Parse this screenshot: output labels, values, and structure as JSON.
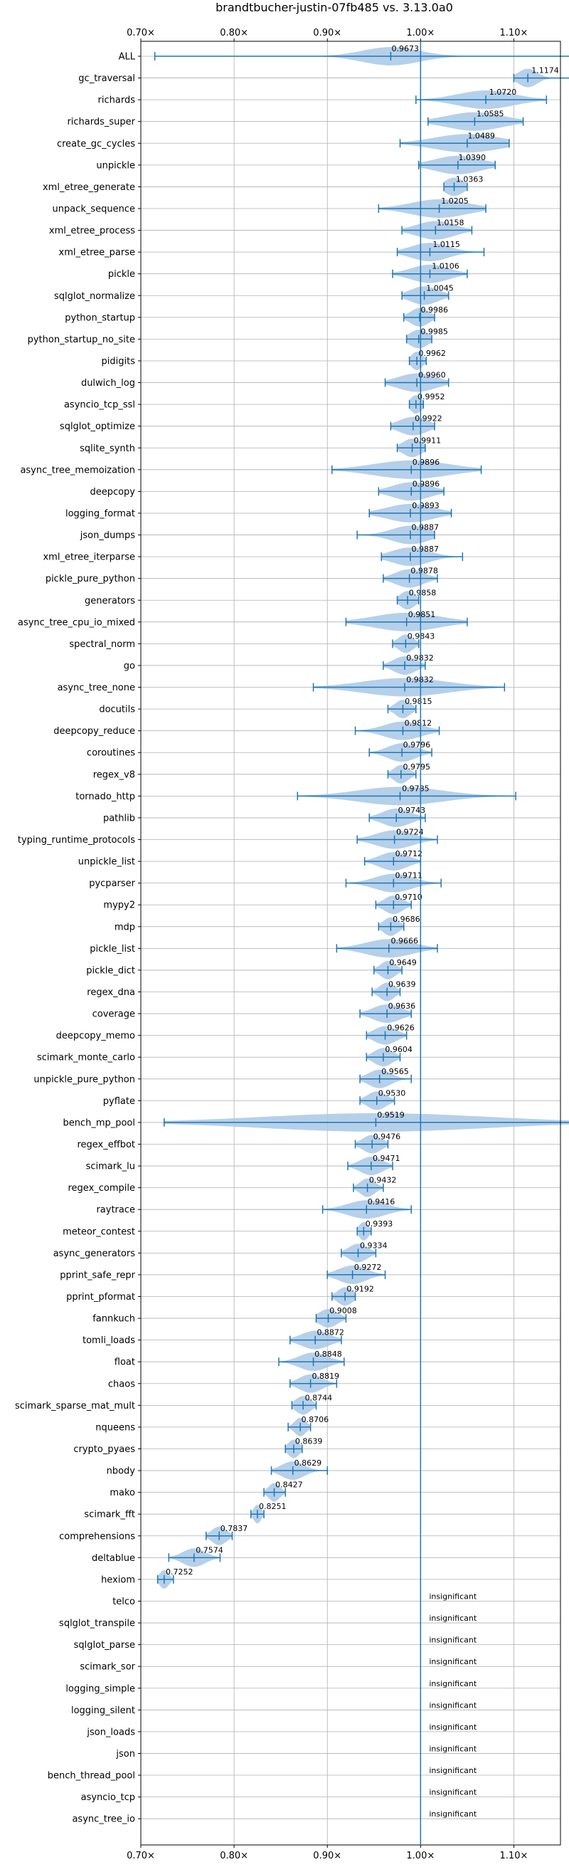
{
  "chart_data": {
    "type": "violin",
    "title": "brandtbucher-justin-07fb485 vs. 3.13.0a0",
    "xlim": [
      0.7,
      1.15
    ],
    "x_ticks": [
      "0.70×",
      "0.80×",
      "0.90×",
      "1.00×",
      "1.10×"
    ],
    "x_tick_values": [
      0.7,
      0.8,
      0.9,
      1.0,
      1.1
    ],
    "reference_line": 1.0,
    "grid": true,
    "colors": {
      "violin": "#a9c8e6",
      "whisker": "#1f77b4",
      "grid": "#b0b0b0"
    },
    "rows": [
      {
        "label": "ALL",
        "mean": 0.9673,
        "value_label": "0.9673",
        "min": 0.715,
        "max": 1.17,
        "median": 0.968,
        "spread": 0.03
      },
      {
        "label": "gc_traversal",
        "mean": 1.1174,
        "value_label": "1.1174",
        "min": 1.1,
        "max": 1.17,
        "median": 1.115,
        "spread": 0.01
      },
      {
        "label": "richards",
        "mean": 1.072,
        "value_label": "1.0720",
        "min": 0.995,
        "max": 1.135,
        "median": 1.07,
        "spread": 0.03
      },
      {
        "label": "richards_super",
        "mean": 1.0585,
        "value_label": "1.0585",
        "min": 1.008,
        "max": 1.11,
        "median": 1.058,
        "spread": 0.03
      },
      {
        "label": "create_gc_cycles",
        "mean": 1.0489,
        "value_label": "1.0489",
        "min": 0.978,
        "max": 1.095,
        "median": 1.05,
        "spread": 0.035
      },
      {
        "label": "unpickle",
        "mean": 1.039,
        "value_label": "1.0390",
        "min": 0.998,
        "max": 1.08,
        "median": 1.04,
        "spread": 0.025
      },
      {
        "label": "xml_etree_generate",
        "mean": 1.0363,
        "value_label": "1.0363",
        "min": 1.025,
        "max": 1.05,
        "median": 1.036,
        "spread": 0.01
      },
      {
        "label": "unpack_sequence",
        "mean": 1.0205,
        "value_label": "1.0205",
        "min": 0.955,
        "max": 1.07,
        "median": 1.02,
        "spread": 0.03
      },
      {
        "label": "xml_etree_process",
        "mean": 1.0158,
        "value_label": "1.0158",
        "min": 0.98,
        "max": 1.055,
        "median": 1.016,
        "spread": 0.02
      },
      {
        "label": "xml_etree_parse",
        "mean": 1.0115,
        "value_label": "1.0115",
        "min": 0.975,
        "max": 1.068,
        "median": 1.01,
        "spread": 0.02
      },
      {
        "label": "pickle",
        "mean": 1.0106,
        "value_label": "1.0106",
        "min": 0.97,
        "max": 1.05,
        "median": 1.01,
        "spread": 0.02
      },
      {
        "label": "sqlglot_normalize",
        "mean": 1.0045,
        "value_label": "1.0045",
        "min": 0.98,
        "max": 1.03,
        "median": 1.004,
        "spread": 0.015
      },
      {
        "label": "python_startup",
        "mean": 0.9986,
        "value_label": "0.9986",
        "min": 0.982,
        "max": 1.015,
        "median": 0.999,
        "spread": 0.01
      },
      {
        "label": "python_startup_no_site",
        "mean": 0.9985,
        "value_label": "0.9985",
        "min": 0.985,
        "max": 1.012,
        "median": 0.998,
        "spread": 0.01
      },
      {
        "label": "pidigits",
        "mean": 0.9962,
        "value_label": "0.9962",
        "min": 0.988,
        "max": 1.006,
        "median": 0.996,
        "spread": 0.006
      },
      {
        "label": "dulwich_log",
        "mean": 0.996,
        "value_label": "0.9960",
        "min": 0.962,
        "max": 1.03,
        "median": 0.996,
        "spread": 0.02
      },
      {
        "label": "asyncio_tcp_ssl",
        "mean": 0.9952,
        "value_label": "0.9952",
        "min": 0.988,
        "max": 1.003,
        "median": 0.995,
        "spread": 0.006
      },
      {
        "label": "sqlglot_optimize",
        "mean": 0.9922,
        "value_label": "0.9922",
        "min": 0.968,
        "max": 1.015,
        "median": 0.992,
        "spread": 0.015
      },
      {
        "label": "sqlite_synth",
        "mean": 0.9911,
        "value_label": "0.9911",
        "min": 0.975,
        "max": 1.005,
        "median": 0.991,
        "spread": 0.01
      },
      {
        "label": "async_tree_memoization",
        "mean": 0.9896,
        "value_label": "0.9896",
        "min": 0.905,
        "max": 1.065,
        "median": 0.99,
        "spread": 0.04
      },
      {
        "label": "deepcopy",
        "mean": 0.9896,
        "value_label": "0.9896",
        "min": 0.955,
        "max": 1.025,
        "median": 0.99,
        "spread": 0.02
      },
      {
        "label": "logging_format",
        "mean": 0.9893,
        "value_label": "0.9893",
        "min": 0.945,
        "max": 1.033,
        "median": 0.989,
        "spread": 0.025
      },
      {
        "label": "json_dumps",
        "mean": 0.9887,
        "value_label": "0.9887",
        "min": 0.932,
        "max": 1.015,
        "median": 0.989,
        "spread": 0.02
      },
      {
        "label": "xml_etree_iterparse",
        "mean": 0.9887,
        "value_label": "0.9887",
        "min": 0.958,
        "max": 1.045,
        "median": 0.989,
        "spread": 0.02
      },
      {
        "label": "pickle_pure_python",
        "mean": 0.9878,
        "value_label": "0.9878",
        "min": 0.96,
        "max": 1.018,
        "median": 0.988,
        "spread": 0.015
      },
      {
        "label": "generators",
        "mean": 0.9858,
        "value_label": "0.9858",
        "min": 0.975,
        "max": 0.998,
        "median": 0.986,
        "spread": 0.008
      },
      {
        "label": "async_tree_cpu_io_mixed",
        "mean": 0.9851,
        "value_label": "0.9851",
        "min": 0.92,
        "max": 1.05,
        "median": 0.985,
        "spread": 0.035
      },
      {
        "label": "spectral_norm",
        "mean": 0.9843,
        "value_label": "0.9843",
        "min": 0.97,
        "max": 0.998,
        "median": 0.984,
        "spread": 0.008
      },
      {
        "label": "go",
        "mean": 0.9832,
        "value_label": "0.9832",
        "min": 0.96,
        "max": 1.005,
        "median": 0.983,
        "spread": 0.012
      },
      {
        "label": "async_tree_none",
        "mean": 0.9832,
        "value_label": "0.9832",
        "min": 0.885,
        "max": 1.09,
        "median": 0.983,
        "spread": 0.045
      },
      {
        "label": "docutils",
        "mean": 0.9815,
        "value_label": "0.9815",
        "min": 0.965,
        "max": 0.995,
        "median": 0.981,
        "spread": 0.008
      },
      {
        "label": "deepcopy_reduce",
        "mean": 0.9812,
        "value_label": "0.9812",
        "min": 0.93,
        "max": 1.02,
        "median": 0.981,
        "spread": 0.02
      },
      {
        "label": "coroutines",
        "mean": 0.9796,
        "value_label": "0.9796",
        "min": 0.945,
        "max": 1.012,
        "median": 0.98,
        "spread": 0.015
      },
      {
        "label": "regex_v8",
        "mean": 0.9795,
        "value_label": "0.9795",
        "min": 0.965,
        "max": 0.995,
        "median": 0.979,
        "spread": 0.008
      },
      {
        "label": "tornado_http",
        "mean": 0.9785,
        "value_label": "0.9785",
        "min": 0.868,
        "max": 1.102,
        "median": 0.978,
        "spread": 0.045
      },
      {
        "label": "pathlib",
        "mean": 0.9743,
        "value_label": "0.9743",
        "min": 0.945,
        "max": 1.005,
        "median": 0.974,
        "spread": 0.015
      },
      {
        "label": "typing_runtime_protocols",
        "mean": 0.9724,
        "value_label": "0.9724",
        "min": 0.932,
        "max": 1.018,
        "median": 0.972,
        "spread": 0.02
      },
      {
        "label": "unpickle_list",
        "mean": 0.9712,
        "value_label": "0.9712",
        "min": 0.94,
        "max": 1.0,
        "median": 0.971,
        "spread": 0.015
      },
      {
        "label": "pycparser",
        "mean": 0.9711,
        "value_label": "0.9711",
        "min": 0.92,
        "max": 1.022,
        "median": 0.971,
        "spread": 0.02
      },
      {
        "label": "mypy2",
        "mean": 0.971,
        "value_label": "0.9710",
        "min": 0.952,
        "max": 0.99,
        "median": 0.971,
        "spread": 0.01
      },
      {
        "label": "mdp",
        "mean": 0.9686,
        "value_label": "0.9686",
        "min": 0.955,
        "max": 0.982,
        "median": 0.968,
        "spread": 0.008
      },
      {
        "label": "pickle_list",
        "mean": 0.9666,
        "value_label": "0.9666",
        "min": 0.91,
        "max": 1.018,
        "median": 0.966,
        "spread": 0.025
      },
      {
        "label": "pickle_dict",
        "mean": 0.9649,
        "value_label": "0.9649",
        "min": 0.95,
        "max": 0.98,
        "median": 0.965,
        "spread": 0.008
      },
      {
        "label": "regex_dna",
        "mean": 0.9639,
        "value_label": "0.9639",
        "min": 0.948,
        "max": 0.978,
        "median": 0.964,
        "spread": 0.008
      },
      {
        "label": "coverage",
        "mean": 0.9636,
        "value_label": "0.9636",
        "min": 0.935,
        "max": 0.99,
        "median": 0.964,
        "spread": 0.015
      },
      {
        "label": "deepcopy_memo",
        "mean": 0.9626,
        "value_label": "0.9626",
        "min": 0.942,
        "max": 0.985,
        "median": 0.962,
        "spread": 0.012
      },
      {
        "label": "scimark_monte_carlo",
        "mean": 0.9604,
        "value_label": "0.9604",
        "min": 0.942,
        "max": 0.978,
        "median": 0.96,
        "spread": 0.01
      },
      {
        "label": "unpickle_pure_python",
        "mean": 0.9565,
        "value_label": "0.9565",
        "min": 0.935,
        "max": 0.99,
        "median": 0.956,
        "spread": 0.012
      },
      {
        "label": "pyflate",
        "mean": 0.953,
        "value_label": "0.9530",
        "min": 0.935,
        "max": 0.972,
        "median": 0.953,
        "spread": 0.01
      },
      {
        "label": "bench_mp_pool",
        "mean": 0.9519,
        "value_label": "0.9519",
        "min": 0.725,
        "max": 1.17,
        "median": 0.952,
        "spread": 0.12
      },
      {
        "label": "regex_effbot",
        "mean": 0.9476,
        "value_label": "0.9476",
        "min": 0.93,
        "max": 0.965,
        "median": 0.948,
        "spread": 0.01
      },
      {
        "label": "scimark_lu",
        "mean": 0.9471,
        "value_label": "0.9471",
        "min": 0.922,
        "max": 0.97,
        "median": 0.947,
        "spread": 0.012
      },
      {
        "label": "regex_compile",
        "mean": 0.9432,
        "value_label": "0.9432",
        "min": 0.928,
        "max": 0.96,
        "median": 0.943,
        "spread": 0.008
      },
      {
        "label": "raytrace",
        "mean": 0.9416,
        "value_label": "0.9416",
        "min": 0.895,
        "max": 0.99,
        "median": 0.942,
        "spread": 0.02
      },
      {
        "label": "meteor_contest",
        "mean": 0.9393,
        "value_label": "0.9393",
        "min": 0.932,
        "max": 0.947,
        "median": 0.939,
        "spread": 0.005
      },
      {
        "label": "async_generators",
        "mean": 0.9334,
        "value_label": "0.9334",
        "min": 0.915,
        "max": 0.952,
        "median": 0.933,
        "spread": 0.01
      },
      {
        "label": "pprint_safe_repr",
        "mean": 0.9272,
        "value_label": "0.9272",
        "min": 0.9,
        "max": 0.962,
        "median": 0.927,
        "spread": 0.015
      },
      {
        "label": "pprint_pformat",
        "mean": 0.9192,
        "value_label": "0.9192",
        "min": 0.905,
        "max": 0.93,
        "median": 0.919,
        "spread": 0.008
      },
      {
        "label": "fannkuch",
        "mean": 0.9008,
        "value_label": "0.9008",
        "min": 0.888,
        "max": 0.92,
        "median": 0.901,
        "spread": 0.01
      },
      {
        "label": "tomli_loads",
        "mean": 0.8872,
        "value_label": "0.8872",
        "min": 0.86,
        "max": 0.915,
        "median": 0.887,
        "spread": 0.015
      },
      {
        "label": "float",
        "mean": 0.8848,
        "value_label": "0.8848",
        "min": 0.848,
        "max": 0.918,
        "median": 0.885,
        "spread": 0.015
      },
      {
        "label": "chaos",
        "mean": 0.8819,
        "value_label": "0.8819",
        "min": 0.86,
        "max": 0.91,
        "median": 0.882,
        "spread": 0.012
      },
      {
        "label": "scimark_sparse_mat_mult",
        "mean": 0.8744,
        "value_label": "0.8744",
        "min": 0.862,
        "max": 0.888,
        "median": 0.874,
        "spread": 0.008
      },
      {
        "label": "nqueens",
        "mean": 0.8706,
        "value_label": "0.8706",
        "min": 0.858,
        "max": 0.882,
        "median": 0.871,
        "spread": 0.006
      },
      {
        "label": "crypto_pyaes",
        "mean": 0.8639,
        "value_label": "0.8639",
        "min": 0.855,
        "max": 0.873,
        "median": 0.864,
        "spread": 0.006
      },
      {
        "label": "nbody",
        "mean": 0.8629,
        "value_label": "0.8629",
        "min": 0.84,
        "max": 0.9,
        "median": 0.863,
        "spread": 0.012
      },
      {
        "label": "mako",
        "mean": 0.8427,
        "value_label": "0.8427",
        "min": 0.832,
        "max": 0.855,
        "median": 0.843,
        "spread": 0.006
      },
      {
        "label": "scimark_fft",
        "mean": 0.8251,
        "value_label": "0.8251",
        "min": 0.818,
        "max": 0.832,
        "median": 0.825,
        "spread": 0.004
      },
      {
        "label": "comprehensions",
        "mean": 0.7837,
        "value_label": "0.7837",
        "min": 0.77,
        "max": 0.798,
        "median": 0.784,
        "spread": 0.008
      },
      {
        "label": "deltablue",
        "mean": 0.7574,
        "value_label": "0.7574",
        "min": 0.73,
        "max": 0.785,
        "median": 0.757,
        "spread": 0.012
      },
      {
        "label": "hexiom",
        "mean": 0.7252,
        "value_label": "0.7252",
        "min": 0.718,
        "max": 0.735,
        "median": 0.725,
        "spread": 0.005
      },
      {
        "label": "telco",
        "insignificant": true,
        "value_label": "insignificant"
      },
      {
        "label": "sqlglot_transpile",
        "insignificant": true,
        "value_label": "insignificant"
      },
      {
        "label": "sqlglot_parse",
        "insignificant": true,
        "value_label": "insignificant"
      },
      {
        "label": "scimark_sor",
        "insignificant": true,
        "value_label": "insignificant"
      },
      {
        "label": "logging_simple",
        "insignificant": true,
        "value_label": "insignificant"
      },
      {
        "label": "logging_silent",
        "insignificant": true,
        "value_label": "insignificant"
      },
      {
        "label": "json_loads",
        "insignificant": true,
        "value_label": "insignificant"
      },
      {
        "label": "json",
        "insignificant": true,
        "value_label": "insignificant"
      },
      {
        "label": "bench_thread_pool",
        "insignificant": true,
        "value_label": "insignificant"
      },
      {
        "label": "asyncio_tcp",
        "insignificant": true,
        "value_label": "insignificant"
      },
      {
        "label": "async_tree_io",
        "insignificant": true,
        "value_label": "insignificant"
      }
    ]
  }
}
